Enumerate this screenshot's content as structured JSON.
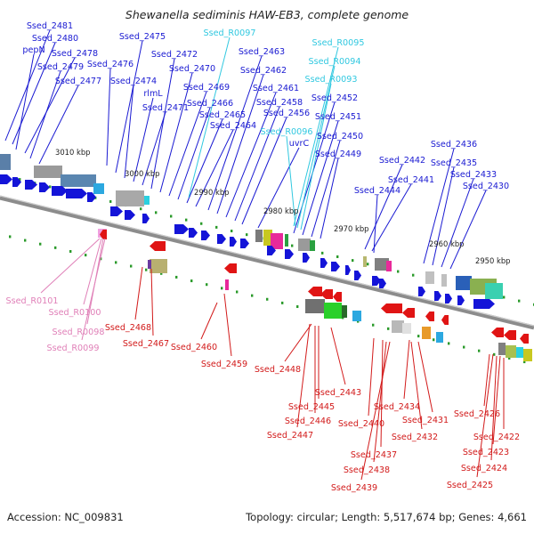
{
  "title": "Shewanella sediminis HAW-EB3, complete genome",
  "footer": {
    "accession": "Accession: NC_009831",
    "topology": "Topology: circular; Length: 5,517,674 bp; Genes: 4,661"
  },
  "colors": {
    "forward_label": "#1a1ad2",
    "reverse_label": "#d21a1a",
    "rna_forward_label": "#30c8e0",
    "rna_reverse_label": "#e080b8",
    "forward_arrow": "#1414d8",
    "reverse_arrow": "#e01414",
    "backbone": "#8c8c8c",
    "tick": "#2a9a2a"
  },
  "kbp_ticks": [
    "3010 kbp",
    "3000 kbp",
    "2990 kbp",
    "2980 kbp",
    "2970 kbp",
    "2960 kbp",
    "2950 kbp"
  ],
  "forward_labels": [
    "Ssed_2481",
    "Ssed_2480",
    "pepN",
    "Ssed_2478",
    "Ssed_2479",
    "Ssed_2477",
    "Ssed_2476",
    "Ssed_2475",
    "Ssed_2474",
    "rlmL",
    "Ssed_2471",
    "Ssed_2472",
    "Ssed_2470",
    "Ssed_2469",
    "Ssed_2466",
    "Ssed_2465",
    "Ssed_2464",
    "Ssed_2463",
    "Ssed_2462",
    "Ssed_2461",
    "Ssed_2458",
    "Ssed_2456",
    "uvrC",
    "Ssed_2452",
    "Ssed_2451",
    "Ssed_2450",
    "Ssed_2449",
    "Ssed_2442",
    "Ssed_2441",
    "Ssed_2444",
    "Ssed_2436",
    "Ssed_2435",
    "Ssed_2433",
    "Ssed_2430"
  ],
  "forward_rna_labels": [
    "Ssed_R0097",
    "Ssed_R0095",
    "Ssed_R0094",
    "Ssed_R0093",
    "Ssed_R0096"
  ],
  "reverse_rna_labels": [
    "Ssed_R0101",
    "Ssed_R0100",
    "Ssed_R0098",
    "Ssed_R0099"
  ],
  "reverse_labels": [
    "Ssed_2468",
    "Ssed_2467",
    "Ssed_2460",
    "Ssed_2459",
    "Ssed_2448",
    "Ssed_2443",
    "Ssed_2445",
    "Ssed_2446",
    "Ssed_2447",
    "Ssed_2440",
    "Ssed_2437",
    "Ssed_2438",
    "Ssed_2439",
    "Ssed_2434",
    "Ssed_2431",
    "Ssed_2432",
    "Ssed_2426",
    "Ssed_2422",
    "Ssed_2423",
    "Ssed_2424",
    "Ssed_2425"
  ]
}
